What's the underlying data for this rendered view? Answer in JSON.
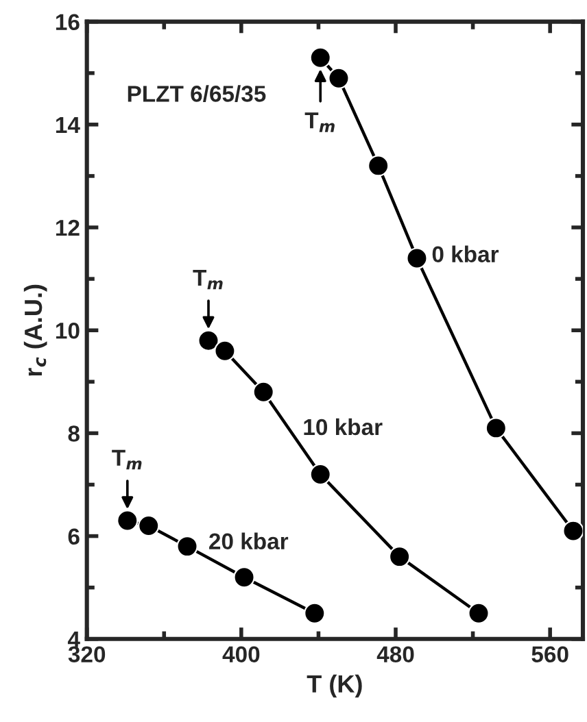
{
  "chart_data": {
    "type": "line",
    "xlabel": "T (K)",
    "ylabel": "r$_{c}$ (A.U.)",
    "xlim": [
      320,
      577
    ],
    "xticks": [
      320,
      400,
      480,
      560
    ],
    "ylim": [
      4,
      16
    ],
    "yticks": [
      4,
      6,
      8,
      10,
      12,
      14,
      16
    ],
    "grid": false,
    "legend": false,
    "marker": "circle",
    "line_style": "solid",
    "series": [
      {
        "color": "#000000",
        "x": [
          441,
          450.5,
          471,
          491,
          532,
          572
        ],
        "values": [
          15.3,
          14.9,
          13.2,
          11.4,
          8.1,
          6.1
        ]
      },
      {
        "color": "#000000",
        "x": [
          383,
          391.5,
          411.5,
          441,
          482,
          523
        ],
        "values": [
          9.8,
          9.6,
          8.8,
          7.2,
          5.6,
          4.5
        ]
      },
      {
        "color": "#000000",
        "x": [
          341,
          352,
          372,
          401.5,
          438
        ],
        "values": [
          6.3,
          6.2,
          5.8,
          5.2,
          4.5
        ]
      }
    ],
    "annotations": [
      {
        "text": "PLZT 6/65/35"
      },
      {
        "text": "T$_{m}$",
        "x": 441,
        "y": 15.3
      },
      {
        "text": "T$_{m}$",
        "x": 383,
        "y": 9.8
      },
      {
        "text": "T$_{m}$",
        "x": 341,
        "y": 6.3
      },
      "0 kbar",
      "10 kbar",
      "20 kbar"
    ]
  }
}
